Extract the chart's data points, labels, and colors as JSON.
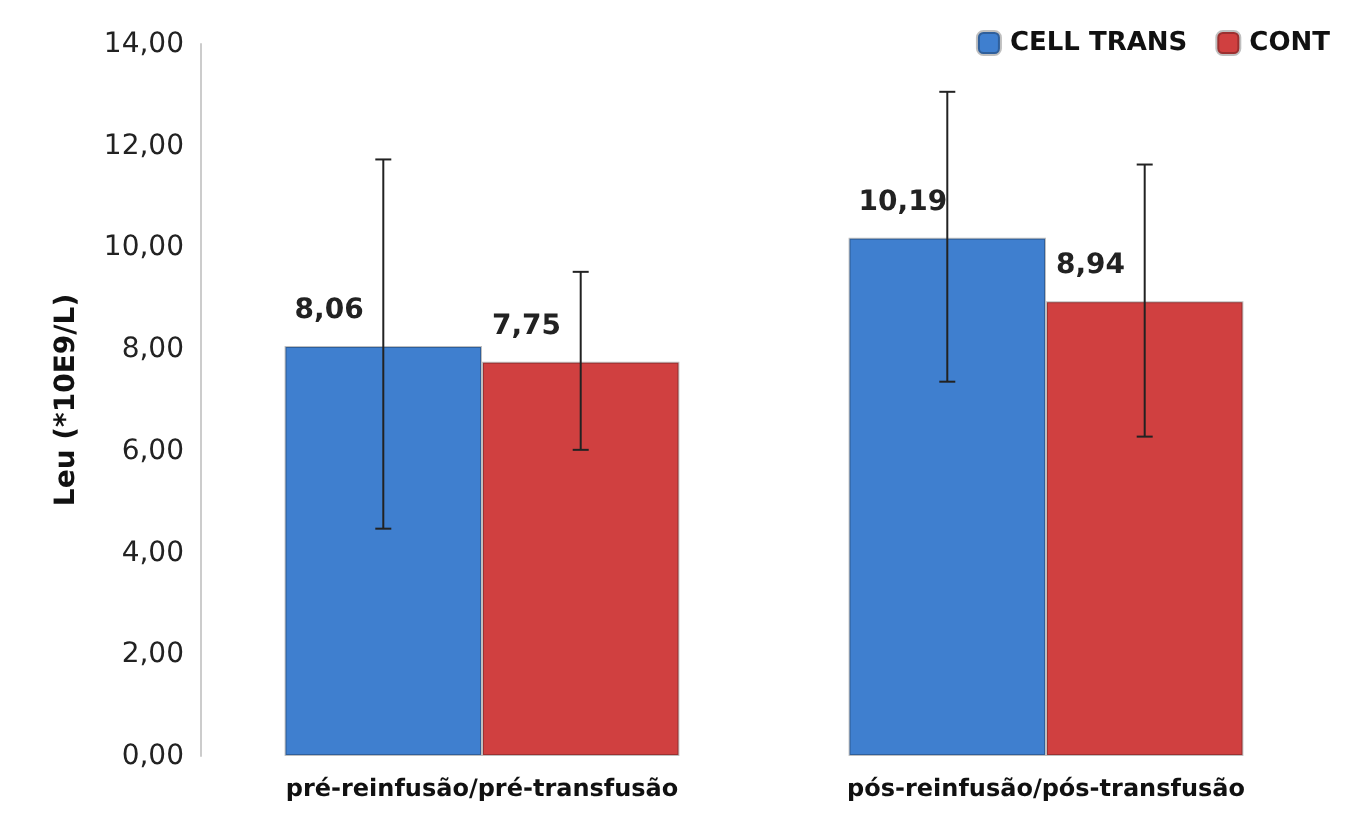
{
  "chart_data": {
    "type": "bar",
    "ylabel": "Leu (*10E9/L)",
    "categories": [
      "pré-reinfusão/pré-transfusão",
      "pós-reinfusão/pós-transfusão"
    ],
    "series": [
      {
        "name": "CELL TRANS",
        "color": "#3f7fcf",
        "values": [
          8.06,
          10.19
        ],
        "value_labels": [
          "8,06",
          "10,19"
        ],
        "errors": [
          [
            4.47,
            11.73
          ],
          [
            7.36,
            13.06
          ]
        ]
      },
      {
        "name": "CONT",
        "color": "#d04040",
        "values": [
          7.75,
          8.94
        ],
        "value_labels": [
          "7,75",
          "8,94"
        ],
        "errors": [
          [
            6.02,
            9.52
          ],
          [
            6.28,
            11.63
          ]
        ]
      }
    ],
    "ylim": [
      0,
      14
    ],
    "yticks": [
      {
        "value": 0,
        "label": "0,00"
      },
      {
        "value": 2,
        "label": "2,00"
      },
      {
        "value": 4,
        "label": "4,00"
      },
      {
        "value": 6,
        "label": "6,00"
      },
      {
        "value": 8,
        "label": "8,00"
      },
      {
        "value": 10,
        "label": "10,00"
      },
      {
        "value": 12,
        "label": "12,00"
      },
      {
        "value": 14,
        "label": "14,00"
      }
    ],
    "grid": false,
    "legend": "top right"
  }
}
